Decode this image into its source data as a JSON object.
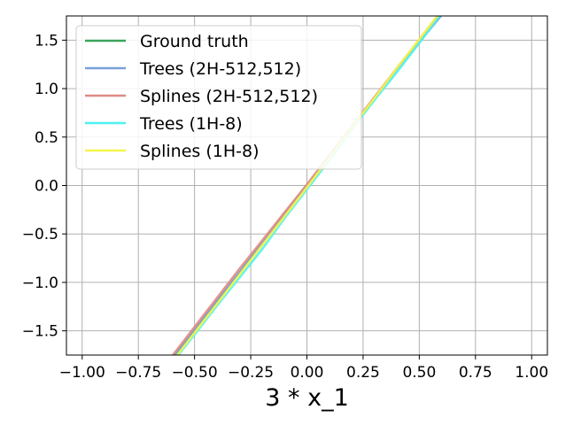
{
  "chart_data": {
    "type": "line",
    "title": "",
    "xlabel": "3 * x_1",
    "ylabel": "",
    "xlim": [
      -1.07,
      1.07
    ],
    "ylim": [
      -1.75,
      1.75
    ],
    "xticks": [
      -1.0,
      -0.75,
      -0.5,
      -0.25,
      0.0,
      0.25,
      0.5,
      0.75,
      1.0
    ],
    "xtick_labels": [
      "−1.00",
      "−0.75",
      "−0.50",
      "−0.25",
      "0.00",
      "0.25",
      "0.50",
      "0.75",
      "1.00"
    ],
    "yticks": [
      -1.5,
      -1.0,
      -0.5,
      0.0,
      0.5,
      1.0,
      1.5
    ],
    "ytick_labels": [
      "−1.5",
      "−1.0",
      "−0.5",
      "0.0",
      "0.5",
      "1.0",
      "1.5"
    ],
    "grid": true,
    "legend_position": "top-left",
    "series": [
      {
        "name": "Ground truth",
        "color": "#3aa35d",
        "x": [
          -0.6,
          -0.5,
          -0.4,
          -0.3,
          -0.2,
          -0.1,
          0.0,
          0.1,
          0.2,
          0.3,
          0.4,
          0.5,
          0.6
        ],
        "y": [
          -1.8,
          -1.5,
          -1.2,
          -0.9,
          -0.6,
          -0.3,
          0.0,
          0.3,
          0.6,
          0.9,
          1.2,
          1.5,
          1.8
        ]
      },
      {
        "name": "Trees (2H-512,512)",
        "color": "#78a0d8",
        "x": [
          -0.6,
          -0.5,
          -0.4,
          -0.3,
          -0.2,
          -0.1,
          0.0,
          0.1,
          0.2,
          0.3,
          0.4,
          0.5,
          0.6
        ],
        "y": [
          -1.78,
          -1.49,
          -1.19,
          -0.9,
          -0.6,
          -0.3,
          0.0,
          0.3,
          0.6,
          0.9,
          1.2,
          1.48,
          1.76
        ]
      },
      {
        "name": "Splines (2H-512,512)",
        "color": "#e08a86",
        "x": [
          -0.6,
          -0.5,
          -0.4,
          -0.3,
          -0.2,
          -0.1,
          0.0,
          0.1,
          0.2,
          0.3,
          0.4,
          0.5,
          0.6
        ],
        "y": [
          -1.76,
          -1.46,
          -1.16,
          -0.86,
          -0.57,
          -0.28,
          0.01,
          0.31,
          0.61,
          0.91,
          1.21,
          1.5,
          1.79
        ]
      },
      {
        "name": "Trees (1H-8)",
        "color": "#4ef2f2",
        "x": [
          -0.6,
          -0.5,
          -0.4,
          -0.3,
          -0.2,
          -0.1,
          0.0,
          0.1,
          0.2,
          0.3,
          0.4,
          0.5,
          0.6
        ],
        "y": [
          -1.83,
          -1.54,
          -1.24,
          -0.95,
          -0.66,
          -0.34,
          -0.04,
          0.26,
          0.58,
          0.88,
          1.17,
          1.47,
          1.78
        ]
      },
      {
        "name": "Splines (1H-8)",
        "color": "#f5f54a",
        "x": [
          -0.6,
          -0.5,
          -0.4,
          -0.3,
          -0.2,
          -0.1,
          0.0,
          0.1,
          0.2,
          0.3,
          0.4,
          0.5,
          0.6
        ],
        "y": [
          -1.82,
          -1.52,
          -1.22,
          -0.92,
          -0.62,
          -0.32,
          -0.02,
          0.29,
          0.6,
          0.9,
          1.21,
          1.51,
          1.81
        ]
      }
    ]
  }
}
